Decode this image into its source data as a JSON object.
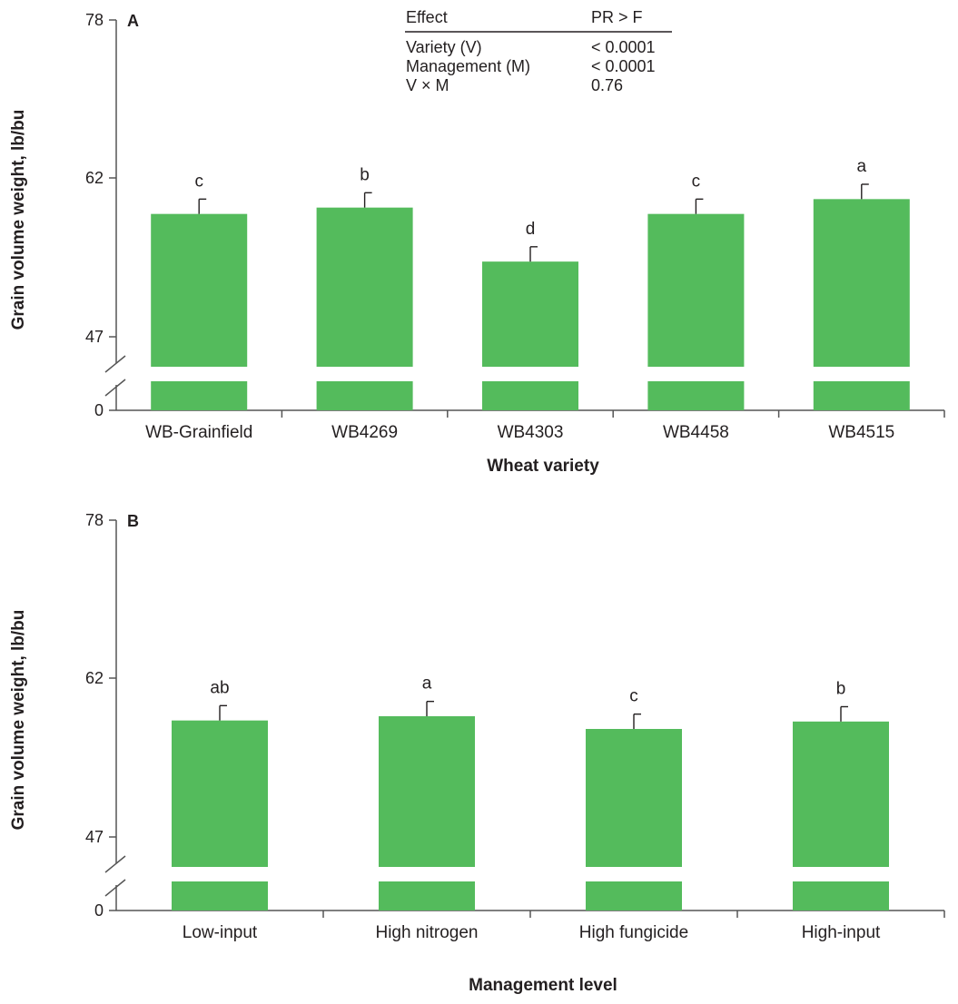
{
  "colors": {
    "bar": "#54bb5c",
    "axis": "#555555",
    "text": "#231f20"
  },
  "chart_data": [
    {
      "type": "bar",
      "panel_label": "A",
      "xlabel": "Wheat variety",
      "ylabel": "Grain volume weight, lb/bu",
      "ylim": [
        0,
        78
      ],
      "yticks": [
        "0",
        "47",
        "62",
        "78"
      ],
      "axis_break": true,
      "categories": [
        "WB-Grainfield",
        "WB4269",
        "WB4303",
        "WB4458",
        "WB4515"
      ],
      "values": [
        58.6,
        59.2,
        54.1,
        58.6,
        60.0
      ],
      "error": [
        1.4,
        1.4,
        1.4,
        1.4,
        1.4
      ],
      "significance": [
        "c",
        "b",
        "d",
        "c",
        "a"
      ],
      "stats_table": {
        "headers": [
          "Effect",
          "PR > F"
        ],
        "rows": [
          [
            "Variety (V)",
            "< 0.0001"
          ],
          [
            "Management (M)",
            "< 0.0001"
          ],
          [
            "V × M",
            "0.76"
          ]
        ]
      }
    },
    {
      "type": "bar",
      "panel_label": "B",
      "xlabel": "Management level",
      "ylabel": "Grain volume weight, lb/bu",
      "ylim": [
        0,
        78
      ],
      "yticks": [
        "0",
        "47",
        "62",
        "78"
      ],
      "axis_break": true,
      "categories": [
        "Low-input",
        "High nitrogen",
        "High fungicide",
        "High-input"
      ],
      "values": [
        58.0,
        58.4,
        57.2,
        57.9
      ],
      "error": [
        1.4,
        1.4,
        1.4,
        1.4
      ],
      "significance": [
        "ab",
        "a",
        "c",
        "b"
      ]
    }
  ]
}
